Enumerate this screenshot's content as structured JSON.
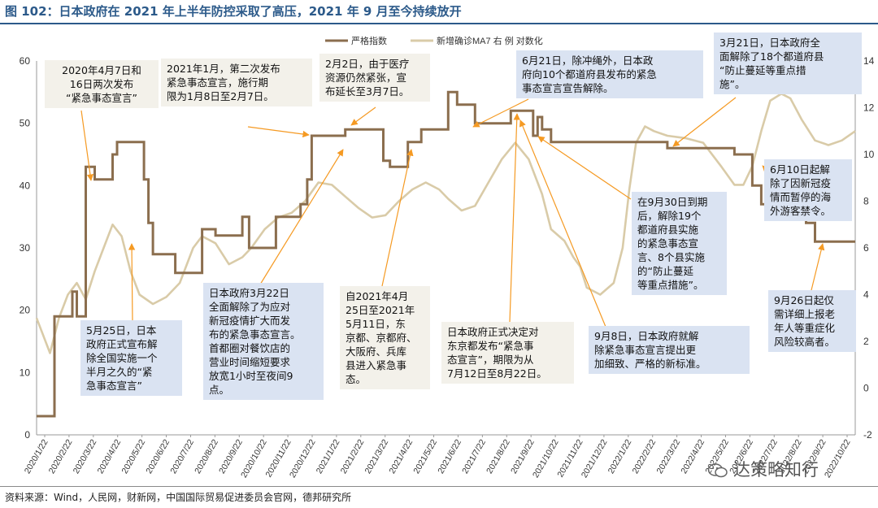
{
  "header": {
    "title": "图 102：日本政府在 2021 年上半年防控采取了高压，2021 年 9 月至今持续放开"
  },
  "footer": {
    "source": "资料来源：Wind，人民网，财新网，中国国际贸易促进委员会官网，德邦研究所"
  },
  "watermark": {
    "text": "达策略知行"
  },
  "colors": {
    "stringency": "#8b6e4e",
    "cases": "#d9cba8",
    "callout_blue": "#dae3f2",
    "callout_light": "#f3f1ea",
    "arrow": "#f59a23"
  },
  "chart_data": {
    "type": "line",
    "legend_position": "top-right",
    "grid": false,
    "x": [
      "2020/1/22",
      "2020/2/22",
      "2020/3/22",
      "2020/4/22",
      "2020/5/22",
      "2020/6/22",
      "2020/7/22",
      "2020/8/22",
      "2020/9/22",
      "2020/10/22",
      "2020/11/22",
      "2020/12/22",
      "2021/1/22",
      "2021/2/22",
      "2021/3/22",
      "2021/4/22",
      "2021/5/22",
      "2021/6/22",
      "2021/7/22",
      "2021/8/22",
      "2021/9/22",
      "2021/10/22",
      "2021/11/22",
      "2021/12/22",
      "2022/1/22",
      "2022/2/22",
      "2022/3/22",
      "2022/4/22",
      "2022/5/22",
      "2022/6/22",
      "2022/7/22",
      "2022/8/22",
      "2022/9/22",
      "2022/10/22"
    ],
    "y_left": {
      "ticks": [
        "0",
        "10",
        "20",
        "30",
        "40",
        "50",
        "60"
      ],
      "lim": [
        0,
        60
      ]
    },
    "y_right": {
      "ticks": [
        "-2",
        "0",
        "2",
        "4",
        "6",
        "8",
        "10",
        "12",
        "14"
      ],
      "lim": [
        -2,
        14
      ]
    },
    "series": [
      {
        "name": "严格指数",
        "axis": "left",
        "values": [
          [
            0,
            3
          ],
          [
            6,
            3
          ],
          [
            8,
            19
          ],
          [
            14,
            19
          ],
          [
            16,
            23
          ],
          [
            18,
            19
          ],
          [
            22,
            43
          ],
          [
            26,
            41
          ],
          [
            30,
            41
          ],
          [
            34,
            45
          ],
          [
            36,
            47
          ],
          [
            46,
            47
          ],
          [
            48,
            41
          ],
          [
            50,
            34
          ],
          [
            52,
            29
          ],
          [
            60,
            29
          ],
          [
            62,
            26
          ],
          [
            72,
            26
          ],
          [
            74,
            33
          ],
          [
            78,
            33
          ],
          [
            80,
            32
          ],
          [
            90,
            32
          ],
          [
            92,
            35
          ],
          [
            95,
            30
          ],
          [
            105,
            30
          ],
          [
            107,
            35
          ],
          [
            115,
            35
          ],
          [
            118,
            37
          ],
          [
            121,
            41
          ],
          [
            123,
            48
          ],
          [
            135,
            48
          ],
          [
            138,
            49
          ],
          [
            150,
            49
          ],
          [
            155,
            44
          ],
          [
            158,
            43
          ],
          [
            162,
            43
          ],
          [
            166,
            47
          ],
          [
            168,
            47
          ],
          [
            172,
            49
          ],
          [
            182,
            49
          ],
          [
            184,
            55
          ],
          [
            188,
            53
          ],
          [
            192,
            53
          ],
          [
            196,
            50
          ],
          [
            210,
            50
          ],
          [
            212,
            52
          ],
          [
            220,
            52
          ],
          [
            222,
            48
          ],
          [
            224,
            51
          ],
          [
            226,
            49
          ],
          [
            230,
            47
          ],
          [
            258,
            47
          ],
          [
            278,
            47
          ],
          [
            282,
            46
          ],
          [
            300,
            46
          ],
          [
            312,
            45
          ],
          [
            318,
            45
          ],
          [
            320,
            40
          ],
          [
            324,
            37
          ],
          [
            340,
            37
          ],
          [
            344,
            34
          ],
          [
            348,
            31
          ],
          [
            366,
            31
          ]
        ]
      },
      {
        "name": "新增确诊MA7 右 例 对数化",
        "axis": "right",
        "values": [
          [
            0,
            3
          ],
          [
            6,
            1.5
          ],
          [
            10,
            3
          ],
          [
            14,
            4
          ],
          [
            18,
            4.5
          ],
          [
            22,
            3.8
          ],
          [
            26,
            5
          ],
          [
            30,
            6
          ],
          [
            34,
            7
          ],
          [
            38,
            6.5
          ],
          [
            42,
            5
          ],
          [
            46,
            4
          ],
          [
            52,
            3.6
          ],
          [
            58,
            3.9
          ],
          [
            64,
            4.5
          ],
          [
            70,
            6
          ],
          [
            74,
            6.5
          ],
          [
            80,
            6.2
          ],
          [
            86,
            5.3
          ],
          [
            92,
            5.6
          ],
          [
            96,
            6
          ],
          [
            102,
            6.8
          ],
          [
            108,
            7.3
          ],
          [
            114,
            7.5
          ],
          [
            120,
            8
          ],
          [
            126,
            8.8
          ],
          [
            132,
            8.7
          ],
          [
            138,
            8.2
          ],
          [
            144,
            7.7
          ],
          [
            150,
            7.3
          ],
          [
            156,
            7.4
          ],
          [
            162,
            8
          ],
          [
            168,
            8.5
          ],
          [
            174,
            8.8
          ],
          [
            180,
            8.5
          ],
          [
            184,
            8.1
          ],
          [
            190,
            7.6
          ],
          [
            196,
            7.8
          ],
          [
            202,
            8.8
          ],
          [
            208,
            9.8
          ],
          [
            214,
            10.5
          ],
          [
            220,
            9.8
          ],
          [
            226,
            8.3
          ],
          [
            230,
            6.8
          ],
          [
            236,
            6.3
          ],
          [
            240,
            5.6
          ],
          [
            243,
            5.2
          ],
          [
            246,
            4.3
          ],
          [
            252,
            4.0
          ],
          [
            258,
            4.5
          ],
          [
            262,
            6
          ],
          [
            265,
            8.5
          ],
          [
            268,
            10.5
          ],
          [
            272,
            11.2
          ],
          [
            276,
            11
          ],
          [
            282,
            10.8
          ],
          [
            290,
            10.7
          ],
          [
            298,
            10.5
          ],
          [
            306,
            9.5
          ],
          [
            312,
            8.7
          ],
          [
            316,
            8.7
          ],
          [
            320,
            9.5
          ],
          [
            324,
            11
          ],
          [
            328,
            12.3
          ],
          [
            333,
            12.6
          ],
          [
            337,
            12.4
          ],
          [
            342,
            11.5
          ],
          [
            348,
            10.6
          ],
          [
            354,
            10.4
          ],
          [
            360,
            10.6
          ],
          [
            366,
            11
          ]
        ]
      }
    ]
  },
  "notes": [
    {
      "id": "n1",
      "lines": [
        "2020年4月7日和",
        "16日两次发布",
        "“紧急事态宣言”"
      ]
    },
    {
      "id": "n2",
      "lines": [
        "2021年1月，第二次发布",
        "紧急事态宣言，施行期",
        "限为1月8日至2月7日。"
      ]
    },
    {
      "id": "n3",
      "lines": [
        "2月2日，由于医疗",
        "资源仍然紧张，宣",
        "布延长至3月7日。"
      ]
    },
    {
      "id": "n4",
      "lines": [
        "6月21日，除冲绳外，日本政",
        "府向10个都道府县发布的紧急",
        "事态宣言宣告解除。"
      ]
    },
    {
      "id": "n5",
      "lines": [
        "3月21日，日本政府全",
        "面解除了18个都道府县",
        "“防止蔓延等重点措",
        "施”。"
      ]
    },
    {
      "id": "n6",
      "lines": [
        "6月10日起解",
        "除了因新冠疫",
        "情而暂停的海",
        "外游客禁令。"
      ]
    },
    {
      "id": "n7",
      "lines": [
        "在9月30日到期",
        "后，解除19个",
        "都道府县实施",
        "的紧急事态宣",
        "言、8个县实施",
        "的“防止蔓延",
        "等重点措施”。"
      ]
    },
    {
      "id": "n8",
      "lines": [
        "5月25日，日本",
        "政府正式宣布解",
        "除全国实施一个",
        "半月之久的“紧",
        "急事态宣言”"
      ]
    },
    {
      "id": "n9",
      "lines": [
        "日本政府3月22日",
        "全面解除了为应对",
        "新冠疫情扩大而发",
        "布的紧急事态宣言。",
        "首都圈对餐饮店的",
        "营业时间缩短要求",
        "放宽1小时至夜间9",
        "点。"
      ]
    },
    {
      "id": "n10",
      "lines": [
        "自2021年4月",
        "25日至2021年",
        "5月11日，东",
        "京都、京都府、",
        "大阪府、兵库",
        "县进入紧急事",
        "态。"
      ]
    },
    {
      "id": "n11",
      "lines": [
        "日本政府正式决定对",
        "东京都发布“紧急事",
        "态宣言”，期限为从",
        "7月12日至8月22日。"
      ]
    },
    {
      "id": "n12",
      "lines": [
        "9月8日，日本政府就解",
        "除紧急事态宣言提出更",
        "加细致、严格的新标准。"
      ]
    },
    {
      "id": "n13",
      "lines": [
        "9月26日起仅",
        "需详细上报老",
        "年人等重症化",
        "风险较高者。"
      ]
    }
  ]
}
